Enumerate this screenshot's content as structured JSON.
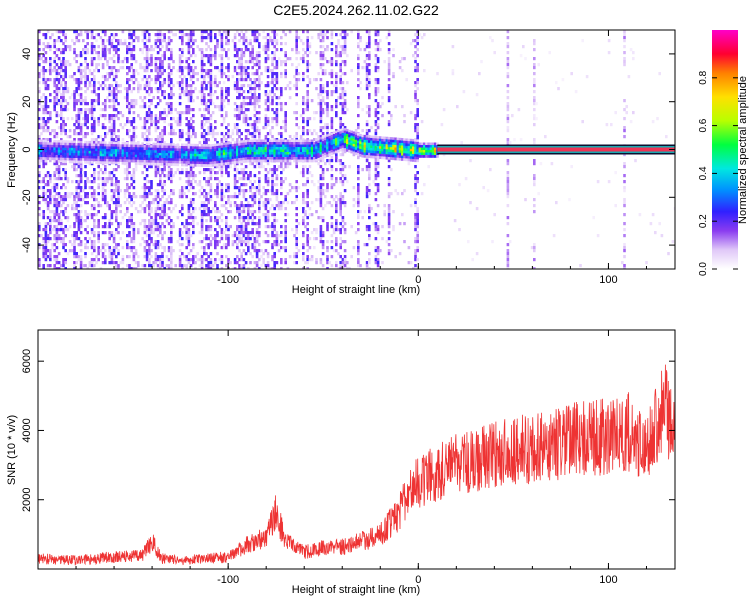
{
  "title": "C2E5.2024.262.11.02.G22",
  "colors": {
    "snr_line": "#ee3333",
    "ridge": "#ee3355",
    "colormap": [
      "#ffffff",
      "#e8d8f8",
      "#b890ee",
      "#8a3cf0",
      "#5a1ee8",
      "#2060ff",
      "#00c8ff",
      "#00ff66",
      "#b8ff00",
      "#ffe000",
      "#ff8000",
      "#ff0040",
      "#ff00c0"
    ]
  },
  "chart_data": [
    {
      "type": "heatmap",
      "xlabel": "Height of straight line (km)",
      "ylabel": "Frequency (Hz)",
      "xlim": [
        -200,
        135
      ],
      "ylim": [
        -50,
        50
      ],
      "xticks": [
        -100,
        0,
        100
      ],
      "yticks": [
        -40,
        -20,
        0,
        20,
        40
      ],
      "colorbar": {
        "label": "Normalized spectral amplitude",
        "range": [
          0,
          1
        ],
        "ticks": [
          0.0,
          0.2,
          0.4,
          0.6,
          0.8
        ]
      },
      "ridge": {
        "description_free": true,
        "center_hz": [
          {
            "x": -200,
            "y": 0
          },
          {
            "x": -110,
            "y": -2
          },
          {
            "x": -90,
            "y": 0
          },
          {
            "x": -70,
            "y": 0
          },
          {
            "x": -55,
            "y": 0
          },
          {
            "x": -40,
            "y": 5
          },
          {
            "x": -30,
            "y": 2
          },
          {
            "x": -15,
            "y": 1
          },
          {
            "x": 0,
            "y": 0
          },
          {
            "x": 135,
            "y": 0
          }
        ],
        "coherent_from_km": 10,
        "coherent_amplitude": 0.9
      }
    },
    {
      "type": "line",
      "xlabel": "Height of straight line (km)",
      "ylabel": "SNR (10 * v/v)",
      "xlim": [
        -200,
        135
      ],
      "ylim": [
        0,
        6900
      ],
      "xticks": [
        -100,
        0,
        100
      ],
      "yticks": [
        2000,
        4000,
        6000
      ],
      "envelope": {
        "x": [
          -200,
          -180,
          -160,
          -145,
          -140,
          -135,
          -125,
          -110,
          -100,
          -90,
          -80,
          -75,
          -70,
          -60,
          -50,
          -40,
          -30,
          -20,
          -10,
          -5,
          0,
          10,
          20,
          30,
          40,
          50,
          60,
          70,
          80,
          90,
          100,
          110,
          118,
          125,
          130,
          135
        ],
        "y": [
          300,
          250,
          350,
          400,
          800,
          300,
          250,
          300,
          350,
          700,
          900,
          1700,
          800,
          500,
          600,
          650,
          800,
          1000,
          1600,
          2300,
          2500,
          2800,
          3000,
          3100,
          3300,
          3400,
          3500,
          3600,
          3700,
          3800,
          3800,
          4000,
          3400,
          4200,
          4600,
          3800
        ]
      }
    }
  ]
}
